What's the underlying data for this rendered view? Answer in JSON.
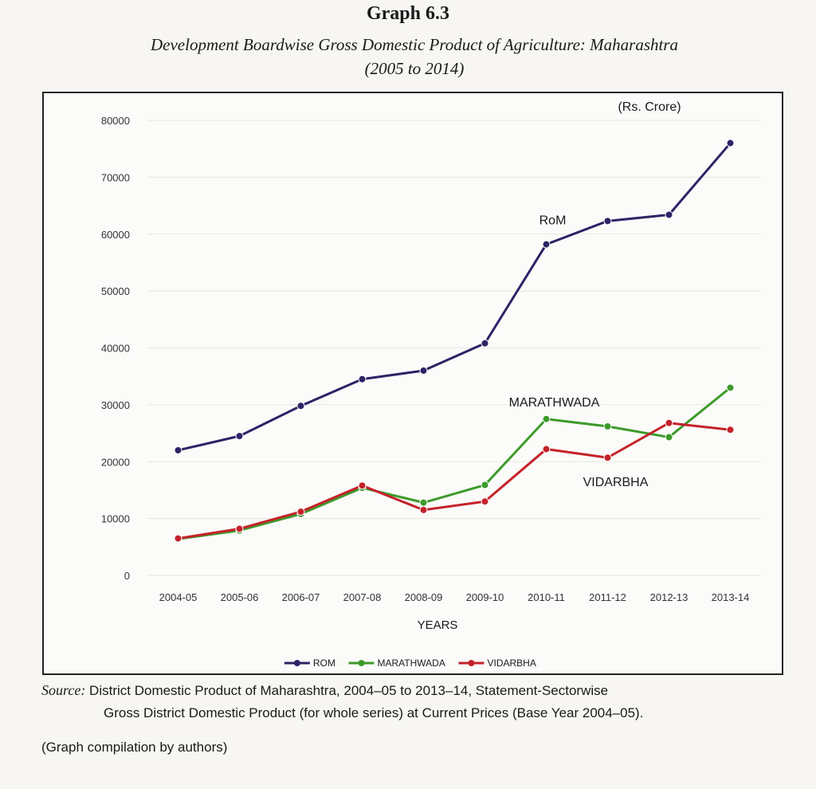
{
  "figure": {
    "label": "Graph 6.3",
    "title": "Development Boardwise Gross Domestic Product of Agriculture: Maharashtra",
    "subtitle": "(2005 to 2014)"
  },
  "chart_data": {
    "type": "line",
    "unit_label": "(Rs. Crore)",
    "xlabel": "YEARS",
    "ylabel": "",
    "ylim": [
      0,
      80000
    ],
    "yticks": [
      "0",
      "10000",
      "20000",
      "30000",
      "40000",
      "50000",
      "60000",
      "70000",
      "80000"
    ],
    "categories": [
      "2004-05",
      "2005-06",
      "2006-07",
      "2007-08",
      "2008-09",
      "2009-10",
      "2010-11",
      "2011-12",
      "2012-13",
      "2013-14"
    ],
    "grid": true,
    "legend_position": "bottom",
    "series": [
      {
        "name": "ROM",
        "annotation": "RoM",
        "color": "#2b2466",
        "values": [
          22000,
          24500,
          29800,
          34500,
          36000,
          40800,
          58200,
          62300,
          63400,
          76000
        ]
      },
      {
        "name": "MARATHWADA",
        "annotation": "MARATHWADA",
        "color": "#3d9a2a",
        "values": [
          6400,
          7900,
          10800,
          15400,
          12800,
          15900,
          27500,
          26200,
          24300,
          33000
        ]
      },
      {
        "name": "VIDARBHA",
        "annotation": "VIDARBHA",
        "color": "#c4222a",
        "values": [
          6500,
          8200,
          11200,
          15800,
          11500,
          13000,
          22200,
          20700,
          26800,
          25600
        ]
      }
    ]
  },
  "source": {
    "label": "Source:",
    "line1": "District Domestic Product of Maharashtra, 2004–05 to 2013–14, Statement-Sectorwise",
    "line2": "Gross District Domestic Product (for whole series) at Current Prices (Base Year 2004–05)."
  },
  "note": "(Graph compilation by authors)"
}
